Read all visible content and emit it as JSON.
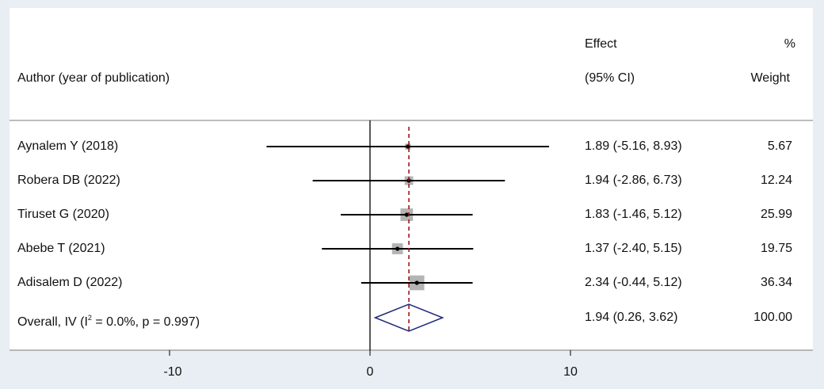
{
  "header": {
    "author_label": "Author (year of publication)",
    "effect_label": "Effect",
    "ci_label": "(95% CI)",
    "pct_label": "%",
    "weight_label": "Weight"
  },
  "overall": {
    "label_prefix": "Overall, IV (I",
    "label_sup": "2",
    "label_suffix": " = 0.0%, p = 0.997)"
  },
  "chart_data": {
    "type": "forest",
    "title": "",
    "xlabel": "",
    "ylabel": "",
    "xlim": [
      -17.7,
      17.7
    ],
    "xticks": [
      -10,
      0,
      10
    ],
    "xtick_labels": [
      "-10",
      "0",
      "10"
    ],
    "null_line": 0,
    "overall_line": 1.94,
    "studies": [
      {
        "author": "Aynalem Y (2018)",
        "effect": 1.89,
        "ci_low": -5.16,
        "ci_high": 8.93,
        "ci_text": "1.89 (-5.16, 8.93)",
        "weight": 5.67,
        "weight_text": "5.67"
      },
      {
        "author": "Robera DB (2022)",
        "effect": 1.94,
        "ci_low": -2.86,
        "ci_high": 6.73,
        "ci_text": "1.94 (-2.86, 6.73)",
        "weight": 12.24,
        "weight_text": "12.24"
      },
      {
        "author": "Tiruset G (2020)",
        "effect": 1.83,
        "ci_low": -1.46,
        "ci_high": 5.12,
        "ci_text": "1.83 (-1.46, 5.12)",
        "weight": 25.99,
        "weight_text": "25.99"
      },
      {
        "author": "Abebe T (2021)",
        "effect": 1.37,
        "ci_low": -2.4,
        "ci_high": 5.15,
        "ci_text": "1.37 (-2.40, 5.15)",
        "weight": 19.75,
        "weight_text": "19.75"
      },
      {
        "author": "Adisalem D (2022)",
        "effect": 2.34,
        "ci_low": -0.44,
        "ci_high": 5.12,
        "ci_text": "2.34 (-0.44, 5.12)",
        "weight": 36.34,
        "weight_text": "36.34"
      }
    ],
    "pooled": {
      "effect": 1.94,
      "ci_low": 0.26,
      "ci_high": 3.62,
      "ci_text": "1.94 (0.26, 3.62)",
      "weight": 100.0,
      "weight_text": "100.00"
    },
    "colors": {
      "ci_line": "#000000",
      "weight_box": "#b4b4b4",
      "point": "#000000",
      "diamond": "#1f2a7a",
      "overall_line": "#a01818",
      "axis": "#000000",
      "rule": "#7a7a7a"
    }
  }
}
